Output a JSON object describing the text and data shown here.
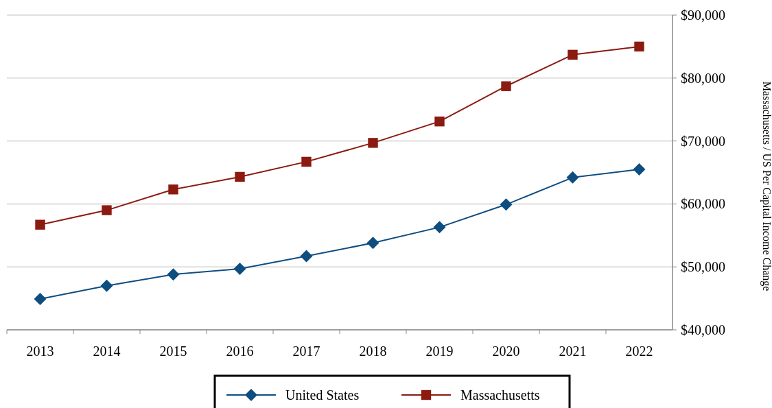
{
  "chart_data": {
    "type": "line",
    "y2label": "Massachusetts / US Per Capital Income Change",
    "categories": [
      "2013",
      "2014",
      "2015",
      "2016",
      "2017",
      "2018",
      "2019",
      "2020",
      "2021",
      "2022"
    ],
    "series": [
      {
        "name": "United States",
        "color": "#0e4d80",
        "marker": "diamond",
        "values": [
          44900,
          47000,
          48800,
          49700,
          51700,
          53800,
          56300,
          59900,
          64200,
          65500
        ]
      },
      {
        "name": "Massachusetts",
        "color": "#8b1a10",
        "marker": "square",
        "values": [
          56700,
          59000,
          62300,
          64300,
          66700,
          69700,
          73100,
          78700,
          83700,
          85000
        ]
      }
    ],
    "ylim": [
      40000,
      90000
    ],
    "yticks": [
      {
        "value": 40000,
        "label": "$40,000"
      },
      {
        "value": 50000,
        "label": "$50,000"
      },
      {
        "value": 60000,
        "label": "$60,000"
      },
      {
        "value": 70000,
        "label": "$70,000"
      },
      {
        "value": 80000,
        "label": "$80,000"
      },
      {
        "value": 90000,
        "label": "$90,000"
      }
    ],
    "grid": "y",
    "legend": "bottom",
    "line_style": "solid"
  }
}
